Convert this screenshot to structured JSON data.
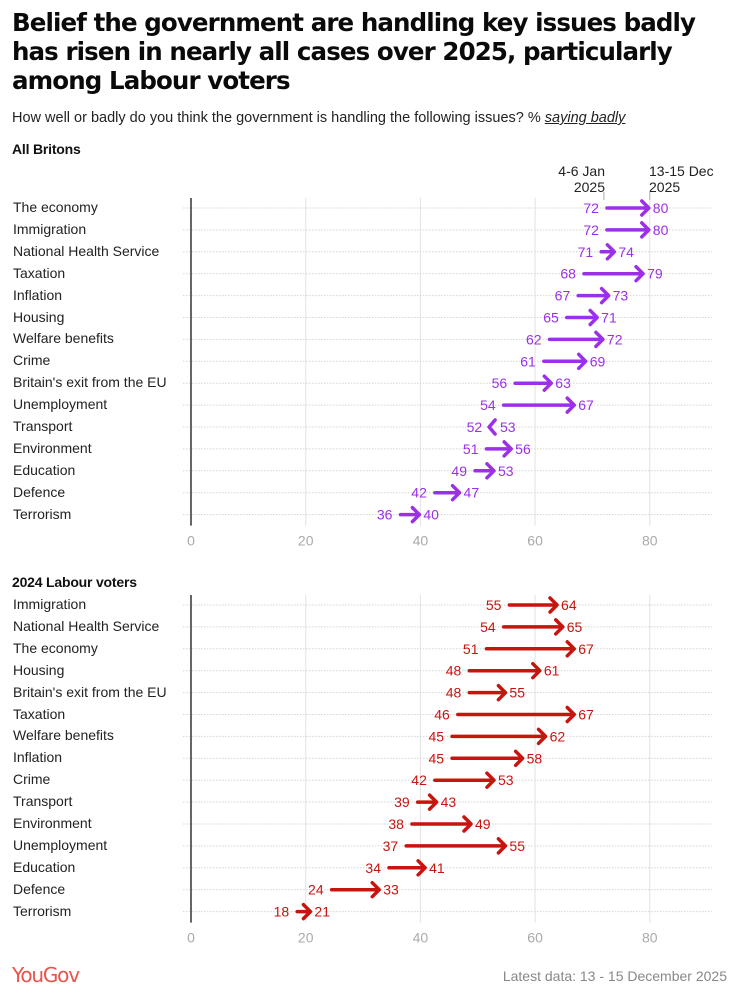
{
  "title": "Belief the government are handling key issues badly has risen in nearly all cases over 2025, particularly among Labour voters",
  "subtitle_prefix": "How well or badly do you think the government is handling the following issues? % ",
  "subtitle_emphasis": "saying badly",
  "legend": {
    "start_label_line1": "4-6 Jan",
    "start_label_line2": "2025",
    "end_label_line1": "13-15 Dec",
    "end_label_line2": "2025"
  },
  "footer": {
    "logo": "YouGov",
    "note": "Latest data: 13 - 15 December 2025"
  },
  "chart_data": [
    {
      "type": "arrow",
      "title": "All Britons",
      "color": "#9b30e8",
      "xlim": [
        0,
        90
      ],
      "xticks": [
        0,
        20,
        40,
        60,
        80
      ],
      "series_names": [
        "4-6 Jan 2025",
        "13-15 Dec 2025"
      ],
      "categories": [
        "The economy",
        "Immigration",
        "National Health Service",
        "Taxation",
        "Inflation",
        "Housing",
        "Welfare benefits",
        "Crime",
        "Britain's exit from the EU",
        "Unemployment",
        "Transport",
        "Environment",
        "Education",
        "Defence",
        "Terrorism"
      ],
      "start": [
        72,
        72,
        71,
        68,
        67,
        65,
        62,
        61,
        56,
        54,
        52,
        51,
        49,
        42,
        36
      ],
      "end": [
        80,
        80,
        74,
        79,
        73,
        71,
        72,
        69,
        63,
        67,
        53,
        56,
        53,
        47,
        40
      ]
    },
    {
      "type": "arrow",
      "title": "2024 Labour voters",
      "color": "#c8140f",
      "xlim": [
        0,
        90
      ],
      "xticks": [
        0,
        20,
        40,
        60,
        80
      ],
      "series_names": [
        "4-6 Jan 2025",
        "13-15 Dec 2025"
      ],
      "categories": [
        "Immigration",
        "National Health Service",
        "The economy",
        "Housing",
        "Britain's exit from the EU",
        "Taxation",
        "Welfare benefits",
        "Inflation",
        "Crime",
        "Transport",
        "Environment",
        "Unemployment",
        "Education",
        "Defence",
        "Terrorism"
      ],
      "start": [
        55,
        54,
        51,
        48,
        48,
        46,
        45,
        45,
        42,
        39,
        38,
        37,
        34,
        24,
        18
      ],
      "end": [
        64,
        65,
        67,
        61,
        55,
        67,
        62,
        58,
        53,
        43,
        49,
        55,
        41,
        33,
        21
      ]
    }
  ]
}
